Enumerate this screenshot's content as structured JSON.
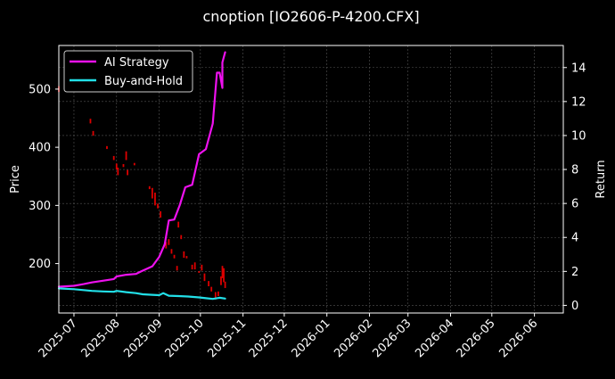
{
  "chart_data": {
    "type": "line",
    "title": "cnoption [IO2606-P-4200.CFX]",
    "xlabel": "",
    "ylabel": "Price",
    "ylabel_right": "Return",
    "x_tick_labels": [
      "2025-07",
      "2025-08",
      "2025-09",
      "2025-10",
      "2025-11",
      "2025-12",
      "2026-01",
      "2026-02",
      "2026-03",
      "2026-04",
      "2026-05",
      "2026-06"
    ],
    "x_tick_dates": [
      "2025-07-01",
      "2025-08-01",
      "2025-09-01",
      "2025-10-01",
      "2025-11-01",
      "2025-12-01",
      "2026-01-01",
      "2026-02-01",
      "2026-03-01",
      "2026-04-01",
      "2026-05-01",
      "2026-06-01"
    ],
    "xlim": [
      "2025-06-20",
      "2026-06-22"
    ],
    "y_left": {
      "ylim": [
        115,
        575
      ],
      "ticks": [
        200,
        300,
        400,
        500
      ]
    },
    "y_right": {
      "ylim": [
        -0.45,
        15.3
      ],
      "ticks": [
        0,
        2,
        4,
        6,
        8,
        10,
        12,
        14
      ]
    },
    "grid": true,
    "legend": {
      "position": "top-left",
      "entries": [
        "AI Strategy",
        "Buy-and-Hold"
      ]
    },
    "colors": {
      "ai": "#ee11ee",
      "buyhold": "#22e0e8",
      "up": "#00a800",
      "down": "#dd0000",
      "grid": "#555555"
    },
    "series": [
      {
        "name": "AI Strategy",
        "axis": "right",
        "x": [
          "2025-06-20",
          "2025-07-01",
          "2025-07-08",
          "2025-07-14",
          "2025-07-22",
          "2025-07-30",
          "2025-08-01",
          "2025-08-08",
          "2025-08-15",
          "2025-08-19",
          "2025-08-27",
          "2025-09-01",
          "2025-09-05",
          "2025-09-08",
          "2025-09-12",
          "2025-09-16",
          "2025-09-20",
          "2025-09-25",
          "2025-09-30",
          "2025-10-05",
          "2025-10-10",
          "2025-10-13",
          "2025-10-15",
          "2025-10-17",
          "2025-10-17",
          "2025-10-19"
        ],
        "y": [
          1.1,
          1.15,
          1.25,
          1.35,
          1.45,
          1.55,
          1.7,
          1.8,
          1.85,
          2.0,
          2.3,
          2.85,
          3.6,
          5.0,
          5.05,
          5.9,
          6.95,
          7.1,
          8.9,
          9.2,
          10.7,
          13.7,
          13.7,
          12.8,
          14.3,
          14.9
        ]
      },
      {
        "name": "Buy-and-Hold",
        "axis": "right",
        "x": [
          "2025-06-20",
          "2025-07-01",
          "2025-07-08",
          "2025-07-14",
          "2025-07-22",
          "2025-07-30",
          "2025-08-01",
          "2025-08-08",
          "2025-08-15",
          "2025-08-20",
          "2025-08-27",
          "2025-09-01",
          "2025-09-04",
          "2025-09-08",
          "2025-09-15",
          "2025-09-22",
          "2025-09-30",
          "2025-10-05",
          "2025-10-10",
          "2025-10-15",
          "2025-10-19"
        ],
        "y": [
          1.0,
          0.95,
          0.9,
          0.85,
          0.82,
          0.8,
          0.85,
          0.78,
          0.72,
          0.65,
          0.62,
          0.6,
          0.72,
          0.57,
          0.55,
          0.52,
          0.47,
          0.42,
          0.38,
          0.45,
          0.4
        ]
      }
    ],
    "candles": [
      {
        "x": "2025-06-20",
        "open": 505,
        "close": 495
      },
      {
        "x": "2025-07-13",
        "open": 449,
        "close": 441
      },
      {
        "x": "2025-07-15",
        "open": 428,
        "close": 420
      },
      {
        "x": "2025-07-25",
        "open": 402,
        "close": 397
      },
      {
        "x": "2025-07-30",
        "open": 385,
        "close": 378
      },
      {
        "x": "2025-08-01",
        "open": 372,
        "close": 362
      },
      {
        "x": "2025-08-02",
        "open": 365,
        "close": 352
      },
      {
        "x": "2025-08-06",
        "open": 371,
        "close": 366
      },
      {
        "x": "2025-08-08",
        "open": 393,
        "close": 378
      },
      {
        "x": "2025-08-09",
        "open": 361,
        "close": 352
      },
      {
        "x": "2025-08-14",
        "open": 373,
        "close": 369
      },
      {
        "x": "2025-08-25",
        "open": 333,
        "close": 328
      },
      {
        "x": "2025-08-27",
        "open": 330,
        "close": 312
      },
      {
        "x": "2025-08-29",
        "open": 322,
        "close": 300
      },
      {
        "x": "2025-08-31",
        "open": 303,
        "close": 295
      },
      {
        "x": "2025-09-02",
        "open": 290,
        "close": 279
      },
      {
        "x": "2025-09-06",
        "open": 237,
        "close": 226
      },
      {
        "x": "2025-09-08",
        "open": 242,
        "close": 232
      },
      {
        "x": "2025-09-10",
        "open": 225,
        "close": 217
      },
      {
        "x": "2025-09-12",
        "open": 215,
        "close": 209
      },
      {
        "x": "2025-09-14",
        "open": 196,
        "close": 188
      },
      {
        "x": "2025-09-15",
        "open": 272,
        "close": 262
      },
      {
        "x": "2025-09-17",
        "open": 249,
        "close": 242
      },
      {
        "x": "2025-09-19",
        "open": 221,
        "close": 210
      },
      {
        "x": "2025-09-21",
        "open": 213,
        "close": 209
      },
      {
        "x": "2025-09-25",
        "open": 198,
        "close": 190
      },
      {
        "x": "2025-09-27",
        "open": 202,
        "close": 190
      },
      {
        "x": "2025-09-30",
        "open": 187,
        "close": 184
      },
      {
        "x": "2025-10-02",
        "open": 198,
        "close": 188
      },
      {
        "x": "2025-10-04",
        "open": 183,
        "close": 170
      },
      {
        "x": "2025-10-07",
        "open": 170,
        "close": 161
      },
      {
        "x": "2025-10-09",
        "open": 160,
        "close": 152
      },
      {
        "x": "2025-10-12",
        "open": 151,
        "close": 138
      },
      {
        "x": "2025-10-14",
        "open": 152,
        "close": 144
      },
      {
        "x": "2025-10-16",
        "open": 178,
        "close": 163
      },
      {
        "x": "2025-10-17",
        "open": 196,
        "close": 175
      },
      {
        "x": "2025-10-18",
        "open": 192,
        "close": 168
      },
      {
        "x": "2025-10-19",
        "open": 169,
        "close": 158
      }
    ]
  }
}
